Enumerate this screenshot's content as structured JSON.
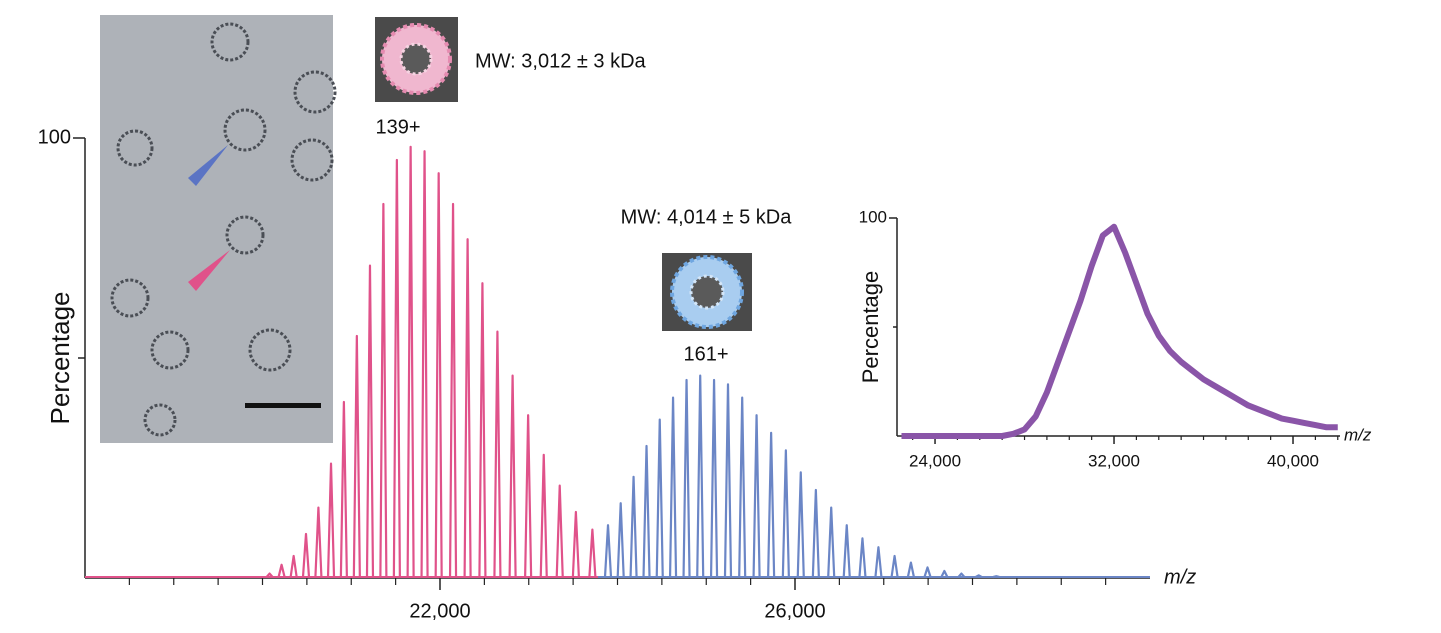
{
  "chart_data": [
    {
      "type": "spectrum",
      "ylabel": "Percentage",
      "xlabel": "m/z",
      "xlim": [
        18000,
        30000
      ],
      "ylim": [
        0,
        100
      ],
      "xticks": [
        {
          "value": 22000,
          "label": "22,000"
        },
        {
          "value": 26000,
          "label": "26,000"
        }
      ],
      "yticks": [
        100
      ],
      "minor_xticks": [
        18500,
        19000,
        19500,
        20000,
        20500,
        21000,
        21500,
        22500,
        23000,
        23500,
        24000,
        24500,
        25000,
        25500,
        26500,
        27000,
        27500,
        28000,
        28500,
        29000,
        29500
      ],
      "minor_yticks": [
        50
      ],
      "annotations": [
        "MW: 3,012 ± 3 kDa",
        "139+",
        "MW: 4,014 ± 5 kDa",
        "161+"
      ],
      "series": [
        {
          "color": "#e0528a",
          "x": [
            20080,
            20215,
            20351,
            20490,
            20630,
            20772,
            20917,
            21063,
            21211,
            21362,
            21514,
            21669,
            21826,
            21985,
            22147,
            22311,
            22478,
            22647,
            22818,
            22993,
            23169,
            23349,
            23531,
            23717
          ],
          "values": [
            1,
            3,
            5,
            10,
            16,
            26,
            40,
            55,
            71,
            85,
            95,
            98,
            97,
            92,
            85,
            77,
            67,
            56,
            46,
            37,
            28,
            21,
            15,
            11
          ]
        },
        {
          "color": "#6b86c6",
          "x": [
            23893,
            24036,
            24181,
            24327,
            24476,
            24626,
            24778,
            24932,
            25088,
            25245,
            25405,
            25567,
            25731,
            25897,
            26065,
            26235,
            26408,
            26583,
            26760,
            26940,
            27122,
            27306,
            27493,
            27683,
            27875,
            28070,
            28268
          ],
          "values": [
            12,
            17,
            23,
            30,
            36,
            41,
            45,
            46,
            45,
            44,
            41,
            37,
            33,
            29,
            24,
            20,
            16,
            12,
            9,
            7,
            5,
            3.5,
            2.4,
            1.6,
            1,
            0.6,
            0.4
          ]
        }
      ]
    },
    {
      "type": "line",
      "ylabel": "Percentage",
      "xlabel": "m/z",
      "xlim": [
        22300,
        42100
      ],
      "ylim": [
        0,
        100
      ],
      "xticks": [
        {
          "value": 24000,
          "label": "24,000"
        },
        {
          "value": 32000,
          "label": "32,000"
        },
        {
          "value": 40000,
          "label": "40,000"
        }
      ],
      "yticks": [
        100
      ],
      "minor_xticks": [
        23000,
        25000,
        26000,
        27000,
        28000,
        29000,
        30000,
        31000,
        33000,
        34000,
        35000,
        36000,
        37000,
        38000,
        39000,
        41000,
        42000
      ],
      "minor_yticks": [
        50
      ],
      "series": [
        {
          "color": "#8a55a8",
          "x": [
            22500,
            23000,
            23500,
            24000,
            24500,
            25000,
            25500,
            26000,
            26500,
            27000,
            27500,
            28000,
            28500,
            29000,
            29500,
            30000,
            30500,
            31000,
            31500,
            32000,
            32500,
            33000,
            33500,
            34000,
            34500,
            35000,
            35500,
            36000,
            36500,
            37000,
            37500,
            38000,
            38500,
            39000,
            39500,
            40000,
            40500,
            41000,
            41500,
            42000
          ],
          "values": [
            0,
            0,
            0,
            0,
            0,
            0,
            0,
            0,
            0,
            0,
            1,
            3,
            9,
            20,
            34,
            48,
            62,
            78,
            92,
            96,
            84,
            70,
            56,
            46,
            39,
            34,
            30,
            26,
            23,
            20,
            17,
            14,
            12,
            10,
            8,
            7,
            6,
            5,
            4,
            4
          ]
        }
      ]
    }
  ]
}
